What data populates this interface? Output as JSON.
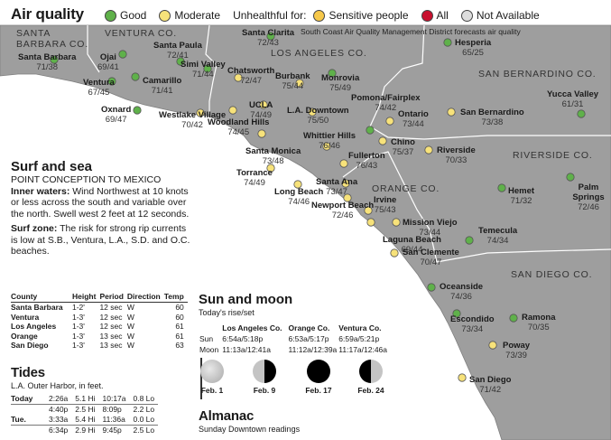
{
  "header": {
    "title": "Air quality",
    "legend": {
      "good": "Good",
      "moderate": "Moderate",
      "unhealthful_for": "Unhealthful for:",
      "sensitive": "Sensitive people",
      "all": "All",
      "not_available": "Not Available"
    },
    "note": "South Coast Air Quality Management District forecasts air quality"
  },
  "counties": {
    "santa_barbara": "SANTA BARBARA CO.",
    "ventura": "VENTURA CO.",
    "los_angeles": "LOS ANGELES CO.",
    "san_bernardino": "SAN BERNARDINO CO.",
    "riverside": "RIVERSIDE CO.",
    "orange": "ORANGE CO.",
    "san_diego": "SAN DIEGO CO."
  },
  "cities": [
    {
      "name": "Santa Barbara",
      "value": "71/38",
      "level": "good"
    },
    {
      "name": "Ojai",
      "value": "69/41",
      "level": "good"
    },
    {
      "name": "Ventura",
      "value": "67/45",
      "level": "good"
    },
    {
      "name": "Santa Paula",
      "value": "72/41",
      "level": "good"
    },
    {
      "name": "Camarillo",
      "value": "71/41",
      "level": "good"
    },
    {
      "name": "Oxnard",
      "value": "69/47",
      "level": "good"
    },
    {
      "name": "Simi Valley",
      "value": "71/44",
      "level": "good"
    },
    {
      "name": "Santa Clarita",
      "value": "72/43",
      "level": "good"
    },
    {
      "name": "Chatsworth",
      "value": "72/47",
      "level": "moderate"
    },
    {
      "name": "Westlake Village",
      "value": "70/42",
      "level": "moderate"
    },
    {
      "name": "Woodland Hills",
      "value": "74/45",
      "level": "moderate"
    },
    {
      "name": "UCLA",
      "value": "74/49",
      "level": "moderate"
    },
    {
      "name": "Burbank",
      "value": "75/44",
      "level": "moderate"
    },
    {
      "name": "Monrovia",
      "value": "75/49",
      "level": "good"
    },
    {
      "name": "L.A. Downtown",
      "value": "75/50",
      "level": "moderate"
    },
    {
      "name": "Santa Monica",
      "value": "73/48",
      "level": "moderate"
    },
    {
      "name": "Whittier Hills",
      "value": "76/46",
      "level": "moderate"
    },
    {
      "name": "Torrance",
      "value": "74/49",
      "level": "moderate"
    },
    {
      "name": "Long Beach",
      "value": "74/46",
      "level": "moderate"
    },
    {
      "name": "Santa Ana",
      "value": "73/47",
      "level": "moderate"
    },
    {
      "name": "Fullerton",
      "value": "76/43",
      "level": "moderate"
    },
    {
      "name": "Pomona/Fairplex",
      "value": "74/42",
      "level": "good"
    },
    {
      "name": "Ontario",
      "value": "73/44",
      "level": "moderate"
    },
    {
      "name": "Chino",
      "value": "75/37",
      "level": "moderate"
    },
    {
      "name": "Hesperia",
      "value": "65/25",
      "level": "good"
    },
    {
      "name": "San Bernardino",
      "value": "73/38",
      "level": "moderate"
    },
    {
      "name": "Riverside",
      "value": "70/33",
      "level": "moderate"
    },
    {
      "name": "Yucca Valley",
      "value": "61/31",
      "level": "good"
    },
    {
      "name": "Hemet",
      "value": "71/32",
      "level": "good"
    },
    {
      "name": "Palm Springs",
      "value": "72/46",
      "level": "good"
    },
    {
      "name": "Newport Beach",
      "value": "72/46",
      "level": "moderate"
    },
    {
      "name": "Irvine",
      "value": "75/43",
      "level": "moderate"
    },
    {
      "name": "Mission Viejo",
      "value": "73/44",
      "level": "moderate"
    },
    {
      "name": "Laguna Beach",
      "value": "69/44",
      "level": "moderate"
    },
    {
      "name": "San Clemente",
      "value": "70/47",
      "level": "moderate"
    },
    {
      "name": "Temecula",
      "value": "74/34",
      "level": "good"
    },
    {
      "name": "Oceanside",
      "value": "74/36",
      "level": "good"
    },
    {
      "name": "Escondido",
      "value": "73/34",
      "level": "good"
    },
    {
      "name": "Ramona",
      "value": "70/35",
      "level": "good"
    },
    {
      "name": "Poway",
      "value": "73/39",
      "level": "moderate"
    },
    {
      "name": "San Diego",
      "value": "71/42",
      "level": "moderate"
    }
  ],
  "surf": {
    "title": "Surf and sea",
    "subtitle": "POINT CONCEPTION TO MEXICO",
    "inner_label": "Inner waters:",
    "inner_text": " Wind Northwest at 10 knots or less across the south and variable over the north. Swell west 2 feet at 12 seconds.",
    "zone_label": "Surf zone:",
    "zone_text": " The risk for strong rip currents is low at S.B., Ventura, L.A., S.D. and O.C. beaches."
  },
  "conditions": {
    "headers": [
      "County",
      "Height",
      "Period",
      "Direction",
      "Temp"
    ],
    "rows": [
      [
        "Santa Barbara",
        "1-2'",
        "12 sec",
        "W",
        "60"
      ],
      [
        "Ventura",
        "1-3'",
        "12 sec",
        "W",
        "60"
      ],
      [
        "Los Angeles",
        "1-3'",
        "12 sec",
        "W",
        "61"
      ],
      [
        "Orange",
        "1-3'",
        "13 sec",
        "W",
        "61"
      ],
      [
        "San Diego",
        "1-3'",
        "13 sec",
        "W",
        "63"
      ]
    ]
  },
  "tides": {
    "title": "Tides",
    "subtitle": "L.A. Outer Harbor, in feet.",
    "rows": [
      [
        "Today",
        "2:26a",
        "5.1 Hi",
        "10:17a",
        "0.8 Lo"
      ],
      [
        "",
        "4:40p",
        "2.5 Hi",
        "8:09p",
        "2.2 Lo"
      ],
      [
        "Tue.",
        "3:33a",
        "5.4 Hi",
        "11:36a",
        "0.0 Lo"
      ],
      [
        "",
        "6:34p",
        "2.9 Hi",
        "9:45p",
        "2.5 Lo"
      ]
    ]
  },
  "sun_moon": {
    "title": "Sun and moon",
    "subtitle": "Today's rise/set",
    "columns": [
      "Los Angeles Co.",
      "Orange Co.",
      "Ventura Co."
    ],
    "sun_label": "Sun",
    "moon_label": "Moon",
    "sun": [
      "6:54a/5:18p",
      "6:53a/5:17p",
      "6:59a/5:21p"
    ],
    "moon": [
      "11:13a/12:41a",
      "11:12a/12:39a",
      "11:17a/12:46a"
    ],
    "phases": [
      {
        "label": "Feb. 1",
        "phase": "full"
      },
      {
        "label": "Feb. 9",
        "phase": "last-quarter"
      },
      {
        "label": "Feb. 17",
        "phase": "new"
      },
      {
        "label": "Feb. 24",
        "phase": "first-quarter"
      }
    ]
  },
  "almanac": {
    "title": "Almanac",
    "subtitle": "Sunday Downtown readings"
  },
  "colors": {
    "good": "#5fb14a",
    "moderate": "#f7e27a",
    "sensitive": "#f6c84a",
    "all": "#c8102e",
    "not_available": "#dddddd",
    "land": "#9b9b9b",
    "ocean": "#ffffff"
  }
}
